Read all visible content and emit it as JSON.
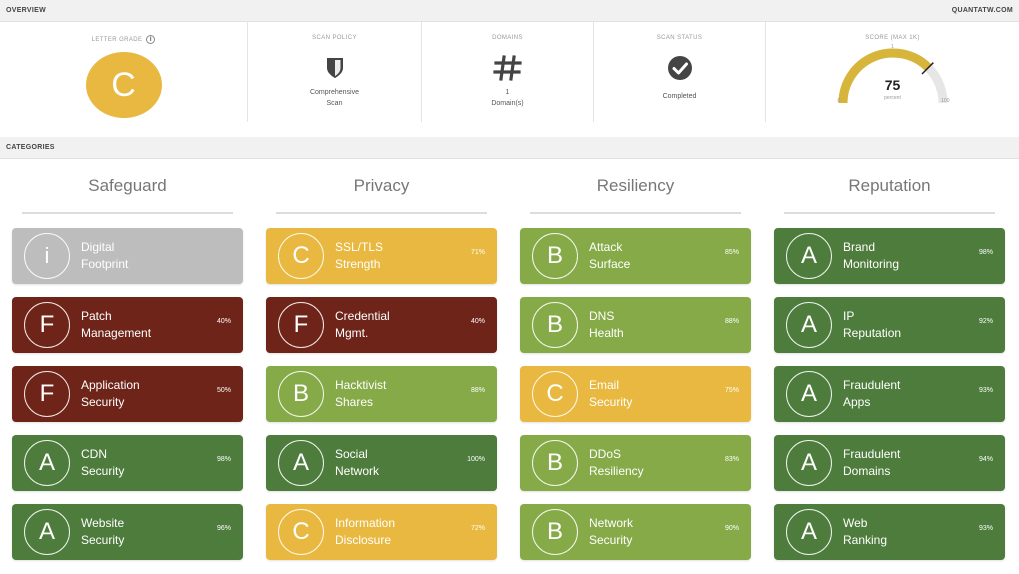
{
  "header": {
    "overview_label": "OVERVIEW",
    "domain": "QUANTATW.COM",
    "categories_label": "CATEGORIES"
  },
  "overview": {
    "letter_grade": {
      "title": "LETTER GRADE",
      "info": "i",
      "value": "C"
    },
    "scan_policy": {
      "title": "SCAN POLICY",
      "icon": "shield-icon",
      "line1": "Comprehensive",
      "line2": "Scan"
    },
    "domains": {
      "title": "DOMAINS",
      "icon": "hash-icon",
      "line1": "1",
      "line2": "Domain(s)"
    },
    "scan_status": {
      "title": "SCAN STATUS",
      "icon": "check-circle-icon",
      "value": "Completed"
    },
    "score": {
      "title": "SCORE (MAX 1k)",
      "value": 75,
      "min": "0",
      "max": "100",
      "unit": "percent",
      "top": "1"
    }
  },
  "colors": {
    "dark_red": "#6e2418",
    "yellow": "#e8b840",
    "light_green": "#86aa48",
    "dark_green": "#4d7c3c",
    "gray": "#bdbdbd"
  },
  "categories": [
    {
      "title": "Safeguard",
      "items": [
        {
          "grade": "i",
          "line1": "Digital",
          "line2": "Footprint",
          "pct": "",
          "color": "#bdbdbd"
        },
        {
          "grade": "F",
          "line1": "Patch",
          "line2": "Management",
          "pct": "40%",
          "color": "#6e2418"
        },
        {
          "grade": "F",
          "line1": "Application",
          "line2": "Security",
          "pct": "50%",
          "color": "#6e2418"
        },
        {
          "grade": "A",
          "line1": "CDN",
          "line2": "Security",
          "pct": "98%",
          "color": "#4d7c3c"
        },
        {
          "grade": "A",
          "line1": "Website",
          "line2": "Security",
          "pct": "96%",
          "color": "#4d7c3c"
        }
      ]
    },
    {
      "title": "Privacy",
      "items": [
        {
          "grade": "C",
          "line1": "SSL/TLS",
          "line2": "Strength",
          "pct": "71%",
          "color": "#e8b840"
        },
        {
          "grade": "F",
          "line1": "Credential",
          "line2": "Mgmt.",
          "pct": "40%",
          "color": "#6e2418"
        },
        {
          "grade": "B",
          "line1": "Hacktivist",
          "line2": "Shares",
          "pct": "88%",
          "color": "#86aa48"
        },
        {
          "grade": "A",
          "line1": "Social",
          "line2": "Network",
          "pct": "100%",
          "color": "#4d7c3c"
        },
        {
          "grade": "C",
          "line1": "Information",
          "line2": "Disclosure",
          "pct": "72%",
          "color": "#e8b840"
        }
      ]
    },
    {
      "title": "Resiliency",
      "items": [
        {
          "grade": "B",
          "line1": "Attack",
          "line2": "Surface",
          "pct": "85%",
          "color": "#86aa48"
        },
        {
          "grade": "B",
          "line1": "DNS",
          "line2": "Health",
          "pct": "88%",
          "color": "#86aa48"
        },
        {
          "grade": "C",
          "line1": "Email",
          "line2": "Security",
          "pct": "75%",
          "color": "#e8b840"
        },
        {
          "grade": "B",
          "line1": "DDoS",
          "line2": "Resiliency",
          "pct": "83%",
          "color": "#86aa48"
        },
        {
          "grade": "B",
          "line1": "Network",
          "line2": "Security",
          "pct": "90%",
          "color": "#86aa48"
        }
      ]
    },
    {
      "title": "Reputation",
      "items": [
        {
          "grade": "A",
          "line1": "Brand",
          "line2": "Monitoring",
          "pct": "98%",
          "color": "#4d7c3c"
        },
        {
          "grade": "A",
          "line1": "IP",
          "line2": "Reputation",
          "pct": "92%",
          "color": "#4d7c3c"
        },
        {
          "grade": "A",
          "line1": "Fraudulent",
          "line2": "Apps",
          "pct": "93%",
          "color": "#4d7c3c"
        },
        {
          "grade": "A",
          "line1": "Fraudulent",
          "line2": "Domains",
          "pct": "94%",
          "color": "#4d7c3c"
        },
        {
          "grade": "A",
          "line1": "Web",
          "line2": "Ranking",
          "pct": "93%",
          "color": "#4d7c3c"
        }
      ]
    }
  ]
}
